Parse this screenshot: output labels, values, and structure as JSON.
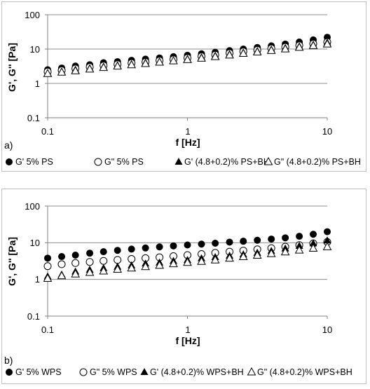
{
  "chart_data": [
    {
      "type": "scatter",
      "panel_label": "a)",
      "xlabel": "f [Hz]",
      "ylabel": "G',  G'' [Pa]",
      "x_scale": "log",
      "y_scale": "log",
      "xlim": [
        0.1,
        10
      ],
      "ylim": [
        0.1,
        100
      ],
      "x_ticks": [
        "0.1",
        "1",
        "10"
      ],
      "y_ticks": [
        "0.1",
        "1",
        "10",
        "100"
      ],
      "grid": "horizontal major lines",
      "legend_placement": "bottom",
      "x": [
        0.1,
        0.126,
        0.158,
        0.2,
        0.251,
        0.316,
        0.398,
        0.501,
        0.631,
        0.794,
        1.0,
        1.26,
        1.58,
        2.0,
        2.51,
        3.16,
        3.98,
        5.01,
        6.31,
        7.94,
        10.0
      ],
      "series": [
        {
          "name": "G' 5% PS",
          "marker": "circle-filled",
          "values": [
            2.5,
            2.8,
            3.2,
            3.5,
            4.0,
            4.3,
            4.7,
            5.1,
            5.5,
            6.0,
            6.6,
            7.3,
            8.1,
            9.0,
            10.0,
            11.1,
            12.4,
            14.0,
            16.0,
            18.5,
            22.0
          ]
        },
        {
          "name": "G\" 5% PS",
          "marker": "circle-open",
          "values": [
            2.2,
            2.4,
            2.7,
            3.0,
            3.3,
            3.6,
            3.9,
            4.2,
            4.6,
            5.0,
            5.5,
            6.1,
            6.8,
            7.6,
            8.5,
            9.4,
            10.4,
            11.5,
            12.8,
            14.3,
            16.0
          ]
        },
        {
          "name": "G' (4.8+0.2)% PS+BH",
          "marker": "triangle-filled",
          "values": [
            2.1,
            2.3,
            2.6,
            2.9,
            3.2,
            3.5,
            3.8,
            4.2,
            4.5,
            4.9,
            5.4,
            6.0,
            6.7,
            7.4,
            8.2,
            9.1,
            10.1,
            11.2,
            12.5,
            14.0,
            16.0
          ]
        },
        {
          "name": "G\" (4.8+0.2)% PS+BH",
          "marker": "triangle-open",
          "values": [
            2.0,
            2.2,
            2.4,
            2.7,
            3.0,
            3.3,
            3.6,
            3.9,
            4.3,
            4.7,
            5.1,
            5.6,
            6.2,
            6.9,
            7.7,
            8.5,
            9.4,
            10.4,
            11.6,
            13.0,
            14.5
          ]
        }
      ]
    },
    {
      "type": "scatter",
      "panel_label": "b)",
      "xlabel": "f [Hz]",
      "ylabel": "G',  G'' [Pa]",
      "x_scale": "log",
      "y_scale": "log",
      "xlim": [
        0.1,
        10
      ],
      "ylim": [
        0.1,
        100
      ],
      "x_ticks": [
        "0.1",
        "1",
        "10"
      ],
      "y_ticks": [
        "0.1",
        "1",
        "10",
        "100"
      ],
      "grid": "horizontal major lines",
      "legend_placement": "bottom",
      "x": [
        0.1,
        0.126,
        0.158,
        0.2,
        0.251,
        0.316,
        0.398,
        0.501,
        0.631,
        0.794,
        1.0,
        1.26,
        1.58,
        2.0,
        2.51,
        3.16,
        3.98,
        5.01,
        6.31,
        7.94,
        10.0
      ],
      "series": [
        {
          "name": "G' 5% WPS",
          "marker": "circle-filled",
          "values": [
            3.8,
            4.2,
            4.6,
            5.2,
            5.7,
            6.2,
            6.7,
            7.2,
            7.7,
            8.2,
            8.7,
            9.2,
            9.7,
            10.4,
            11.0,
            11.7,
            12.6,
            13.6,
            15.0,
            17.0,
            20.0
          ]
        },
        {
          "name": "G\" 5% WPS",
          "marker": "circle-open",
          "values": [
            2.3,
            2.6,
            2.8,
            3.0,
            3.2,
            3.4,
            3.6,
            3.8,
            4.0,
            4.3,
            4.6,
            4.9,
            5.3,
            5.7,
            6.1,
            6.6,
            7.1,
            7.8,
            8.6,
            9.6,
            10.5
          ]
        },
        {
          "name": "G' (4.8+0.2)% WPS+BH",
          "marker": "triangle-filled",
          "values": [
            1.25,
            1.4,
            1.7,
            1.9,
            2.1,
            2.3,
            2.5,
            2.8,
            3.0,
            3.3,
            3.5,
            3.9,
            4.2,
            4.6,
            5.0,
            5.5,
            6.2,
            7.2,
            8.5,
            10.0,
            12.0
          ]
        },
        {
          "name": "G\" (4.8+0.2)% WPS+BH",
          "marker": "triangle-open",
          "values": [
            1.1,
            1.3,
            1.45,
            1.6,
            1.75,
            1.95,
            2.1,
            2.3,
            2.5,
            2.75,
            3.0,
            3.2,
            3.5,
            3.9,
            4.3,
            4.7,
            5.2,
            5.8,
            6.5,
            7.3,
            8.0
          ]
        }
      ]
    }
  ]
}
